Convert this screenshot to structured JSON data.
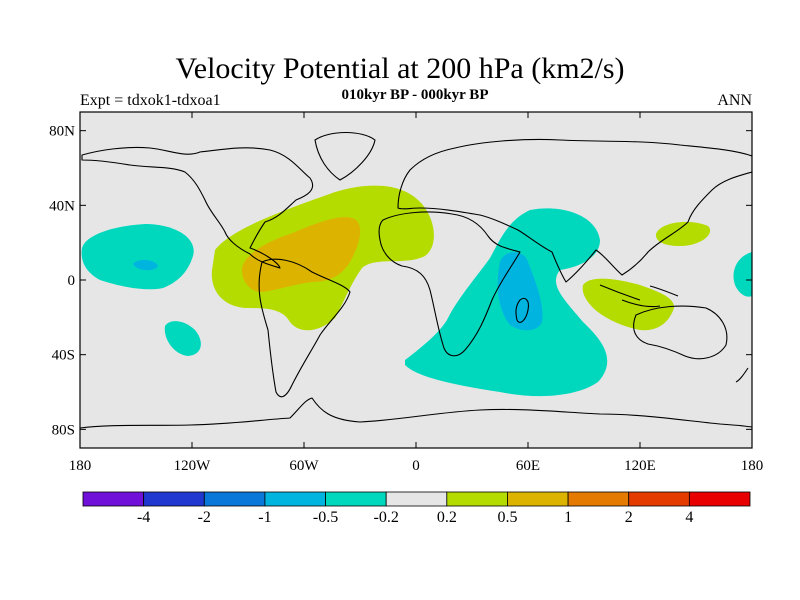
{
  "header": {
    "title": "Velocity Potential at 200 hPa (km2/s)",
    "subtitle": "010kyr BP - 000kyr BP",
    "left_note": "Expt = tdxok1-tdxoa1",
    "right_note": "ANN"
  },
  "map": {
    "projection": "cylindrical equidistant",
    "lon_range": [
      -180,
      180
    ],
    "lat_range": [
      -90,
      90
    ],
    "background_color": "#e6e6e6",
    "lat_ticks": [
      80,
      40,
      0,
      -40,
      -80
    ],
    "lat_tick_labels": [
      "80N",
      "40N",
      "0",
      "40S",
      "80S"
    ],
    "lon_ticks": [
      -180,
      -120,
      -60,
      0,
      60,
      120,
      180
    ],
    "lon_tick_labels": [
      "180",
      "120W",
      "60W",
      "0",
      "60E",
      "120E",
      "180"
    ]
  },
  "colorbar": {
    "colors": [
      "#7010d8",
      "#2038d0",
      "#0a78d8",
      "#00b4e0",
      "#00d8be",
      "#e6e6e6",
      "#b4dc00",
      "#dcb400",
      "#e47a00",
      "#e43c00",
      "#e80000"
    ],
    "labels": [
      "-4",
      "-2",
      "-1",
      "-0.5",
      "-0.2",
      "0.2",
      "0.5",
      "1",
      "2",
      "4"
    ]
  },
  "chart_data": {
    "type": "heatmap",
    "title": "Velocity Potential at 200 hPa (km2/s)",
    "subtitle": "010kyr BP - 000kyr BP",
    "levels": [
      -4,
      -2,
      -1,
      -0.5,
      -0.2,
      0.2,
      0.5,
      1,
      2,
      4
    ],
    "anomaly_regions": [
      {
        "name": "tropical Atlantic / South America max",
        "range": "0.5 to 1",
        "lon_center": -60,
        "lat_center": 8
      },
      {
        "name": "Atlantic positive envelope",
        "range": "0.2 to 0.5",
        "lon_center": -55,
        "lat_center": 10
      },
      {
        "name": "Indian Ocean min",
        "range": "-0.5 to -0.2",
        "lon_center": 58,
        "lat_center": -20
      },
      {
        "name": "western Indian Ocean core",
        "range": "-1 to -0.5",
        "lon_center": 55,
        "lat_center": -10
      },
      {
        "name": "central Pacific min",
        "range": "-0.5 to -0.2",
        "lon_center": -150,
        "lat_center": 10
      },
      {
        "name": "Maritime Continent max",
        "range": "0.2 to 0.5",
        "lon_center": 125,
        "lat_center": -10
      }
    ]
  }
}
